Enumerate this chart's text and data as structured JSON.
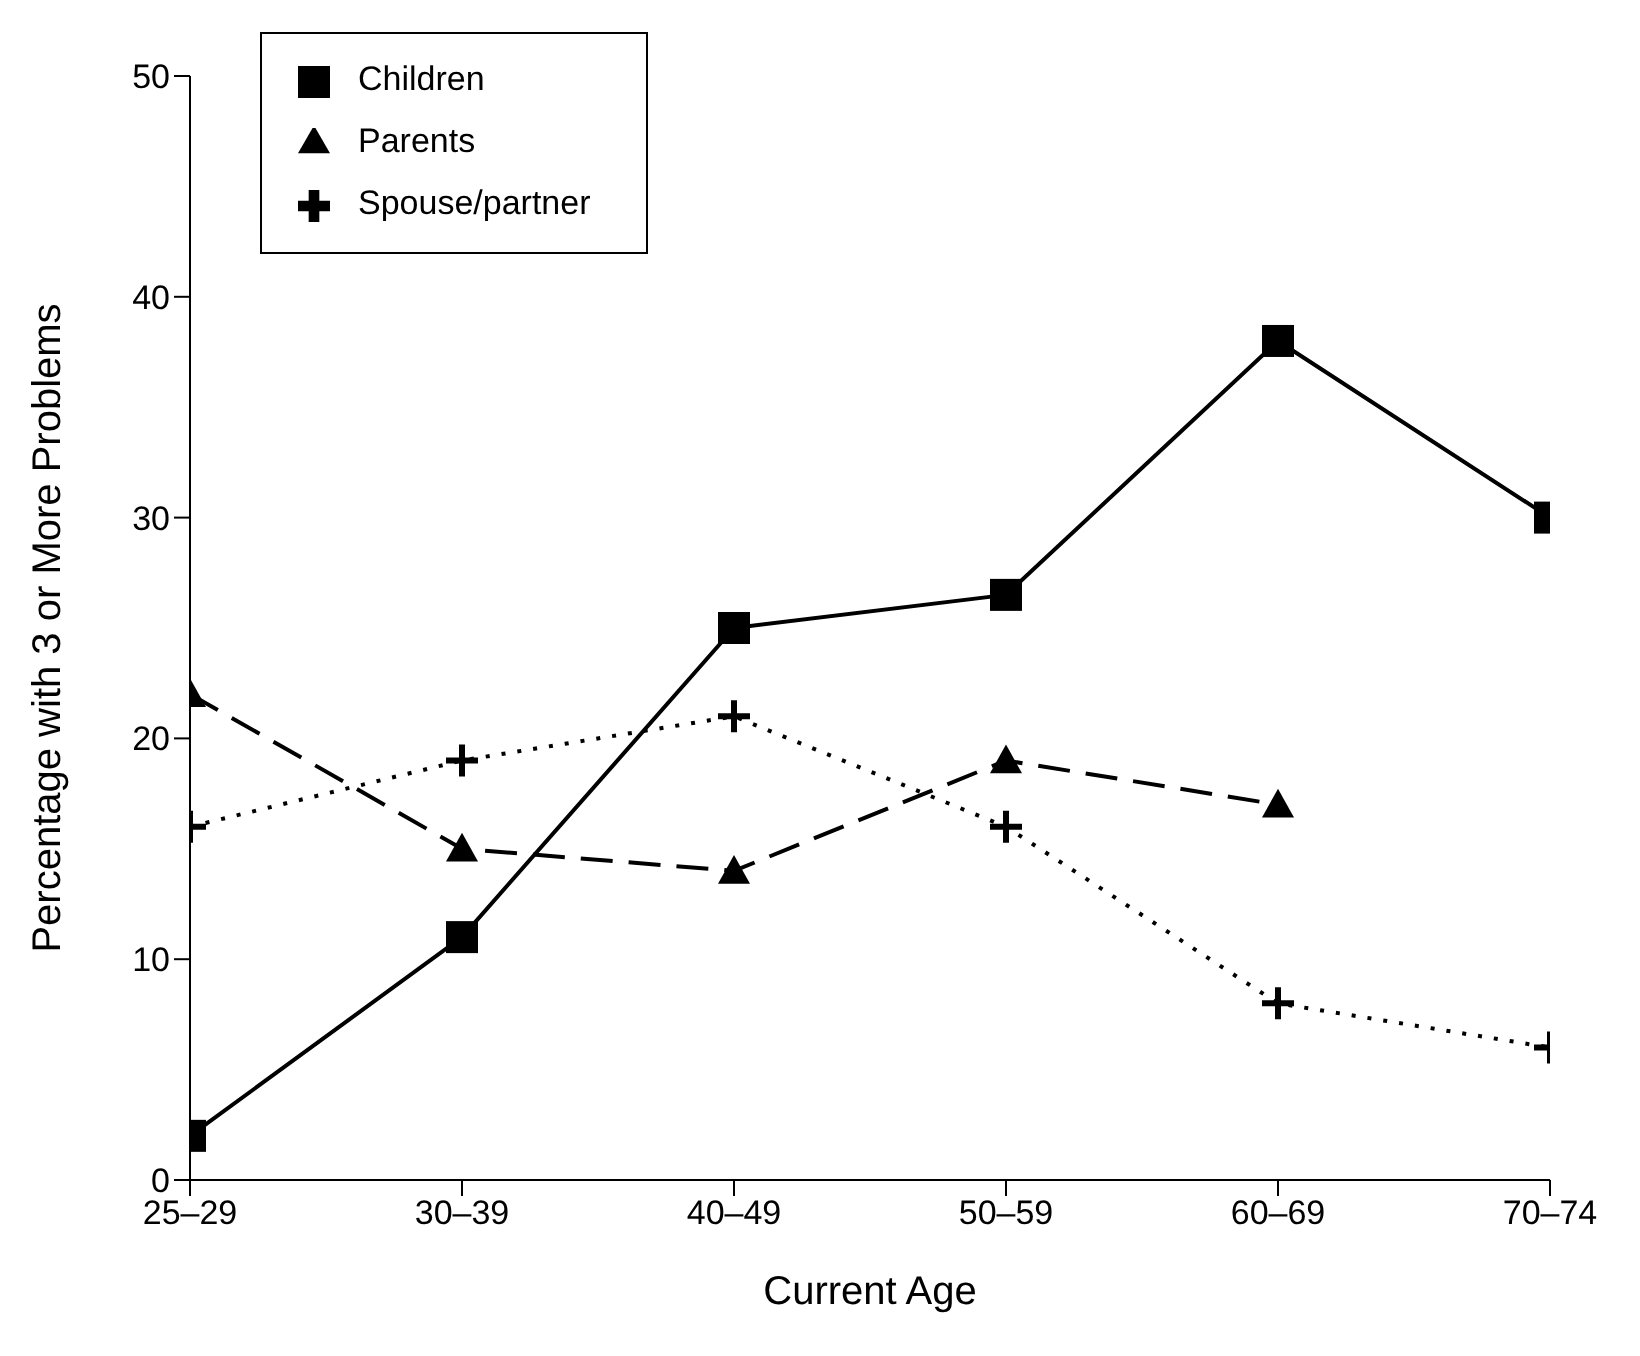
{
  "chart_data": {
    "type": "line",
    "xlabel": "Current Age",
    "ylabel": "Percentage with 3 or More Problems",
    "categories": [
      "25–29",
      "30–39",
      "40–49",
      "50–59",
      "60–69",
      "70–74"
    ],
    "series": [
      {
        "name": "Children",
        "color": "#000000",
        "marker": "square",
        "line_style": "solid",
        "values": [
          2,
          11,
          25,
          26.5,
          38,
          30
        ]
      },
      {
        "name": "Parents",
        "color": "#000000",
        "marker": "triangle",
        "line_style": "dashed",
        "values": [
          22,
          15,
          14,
          19,
          17,
          null
        ]
      },
      {
        "name": "Spouse/partner",
        "color": "#000000",
        "marker": "cross",
        "line_style": "dotted",
        "values": [
          16,
          19,
          21,
          16,
          8,
          6
        ]
      }
    ],
    "ylim": [
      0,
      50
    ],
    "yticks": [
      0,
      10,
      20,
      30,
      40,
      50
    ],
    "grid": false,
    "legend": "top left"
  }
}
